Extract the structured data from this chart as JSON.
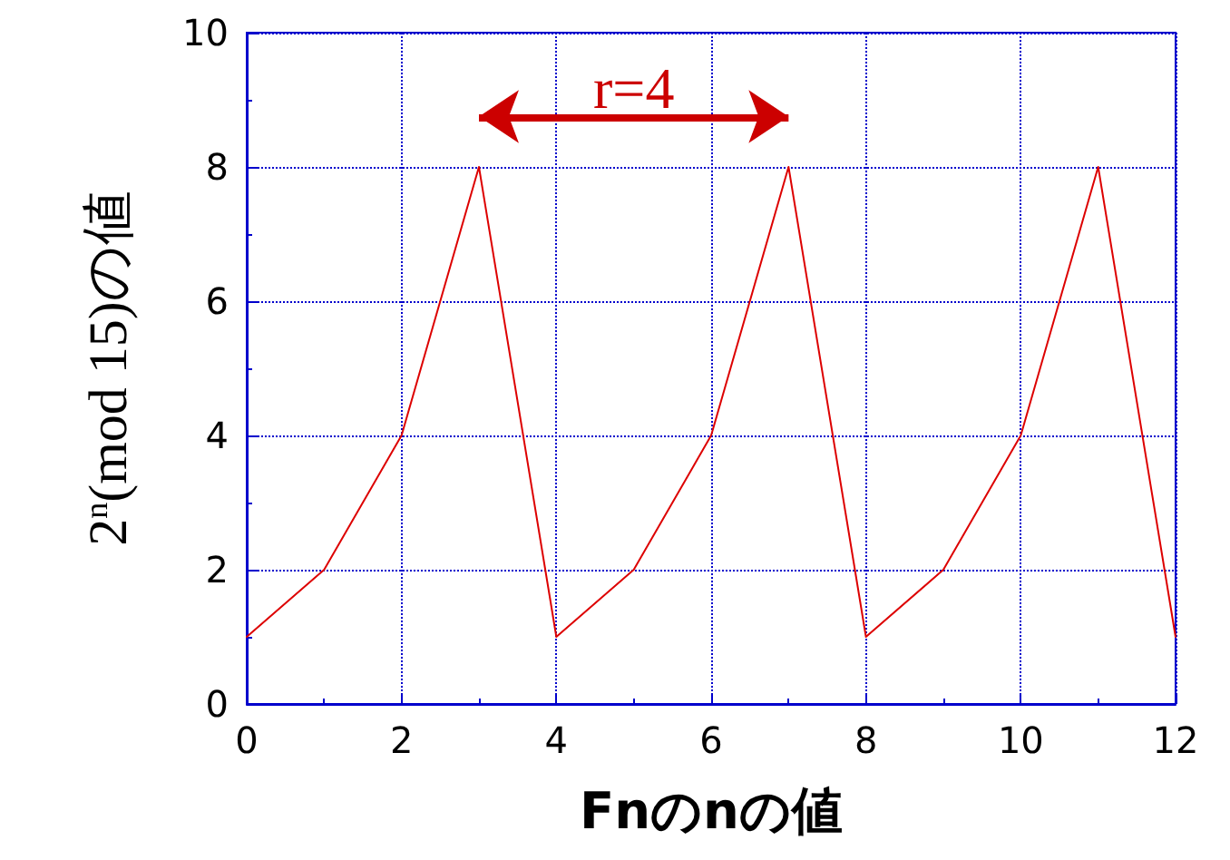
{
  "chart_data": {
    "type": "line",
    "xlabel": "Fnのnの値",
    "ylabel": "2$^{n}$(mod 15)の値",
    "x": [
      0,
      1,
      2,
      3,
      4,
      5,
      6,
      7,
      8,
      9,
      10,
      11,
      12
    ],
    "series": [
      {
        "color": "#dd0000",
        "values": [
          1,
          2,
          4,
          8,
          1,
          2,
          4,
          8,
          1,
          2,
          4,
          8,
          1
        ]
      }
    ],
    "xlim": [
      0,
      12
    ],
    "xticks": [
      0,
      2,
      4,
      6,
      8,
      10,
      12
    ],
    "ylim": [
      0,
      10
    ],
    "yticks": [
      0,
      2,
      4,
      6,
      8,
      10
    ],
    "grid": true,
    "marker": "none",
    "line_style": "solid",
    "annotations": [
      "r=4"
    ]
  }
}
